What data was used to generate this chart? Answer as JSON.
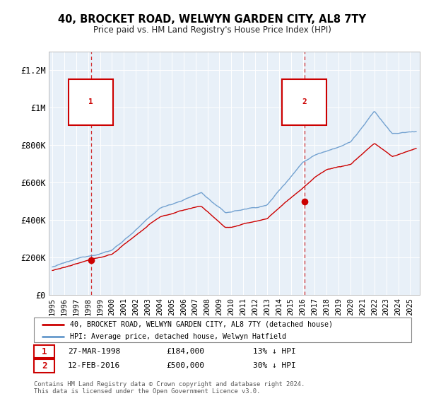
{
  "title": "40, BROCKET ROAD, WELWYN GARDEN CITY, AL8 7TY",
  "subtitle": "Price paid vs. HM Land Registry's House Price Index (HPI)",
  "legend_line1": "40, BROCKET ROAD, WELWYN GARDEN CITY, AL8 7TY (detached house)",
  "legend_line2": "HPI: Average price, detached house, Welwyn Hatfield",
  "annotation1_date": "27-MAR-1998",
  "annotation1_price": "£184,000",
  "annotation1_hpi": "13% ↓ HPI",
  "annotation1_year": 1998.23,
  "annotation1_value": 184000,
  "annotation2_date": "12-FEB-2016",
  "annotation2_price": "£500,000",
  "annotation2_hpi": "30% ↓ HPI",
  "annotation2_year": 2016.12,
  "annotation2_value": 500000,
  "footer": "Contains HM Land Registry data © Crown copyright and database right 2024.\nThis data is licensed under the Open Government Licence v3.0.",
  "price_color": "#cc0000",
  "hpi_color": "#6699cc",
  "background_color": "#e8f0f8",
  "yticks": [
    0,
    200000,
    400000,
    600000,
    800000,
    1000000,
    1200000
  ],
  "ytick_labels": [
    "£0",
    "£200K",
    "£400K",
    "£600K",
    "£800K",
    "£1M",
    "£1.2M"
  ],
  "xmin": 1994.7,
  "xmax": 2025.8,
  "ylim_max": 1300000
}
